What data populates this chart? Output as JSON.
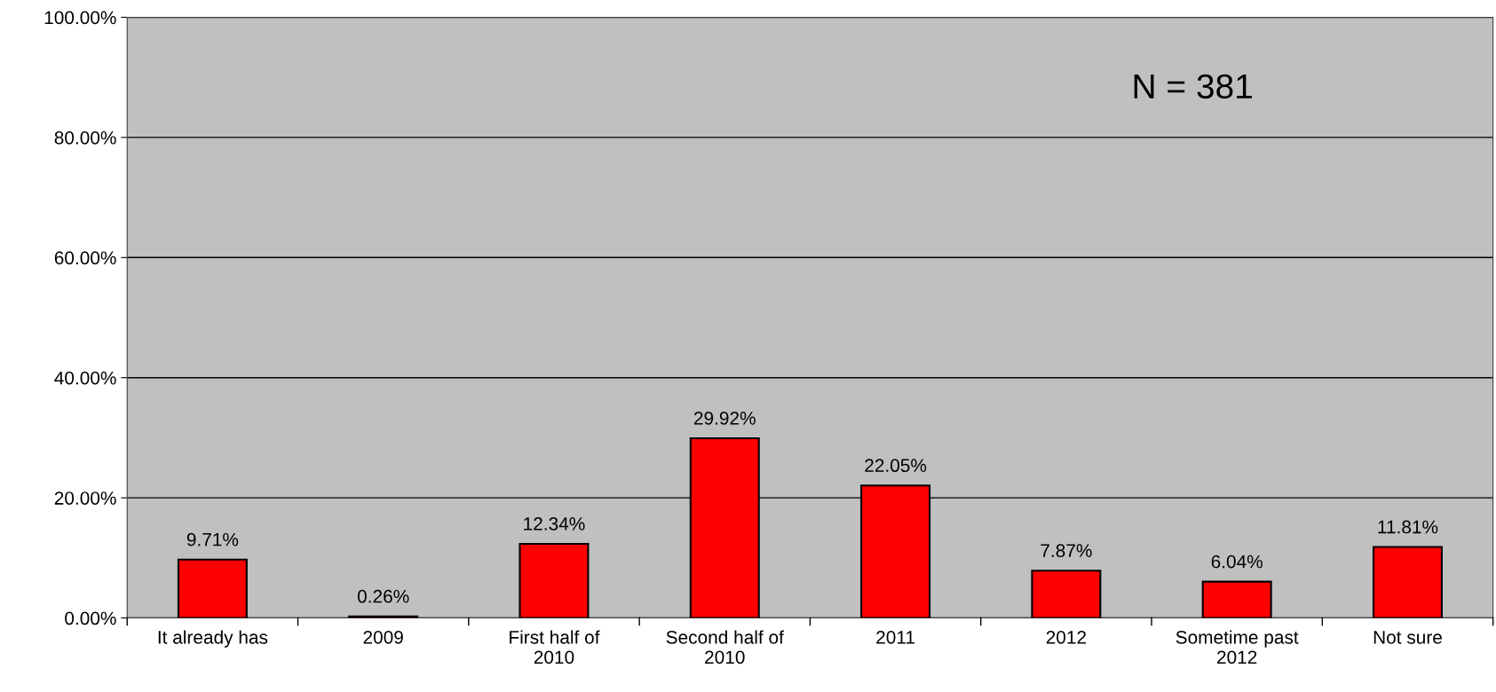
{
  "chart_data": {
    "type": "bar",
    "categories": [
      "It already has",
      "2009",
      "First half of\n2010",
      "Second half of\n2010",
      "2011",
      "2012",
      "Sometime past\n2012",
      "Not sure"
    ],
    "values": [
      9.71,
      0.26,
      12.34,
      29.92,
      22.05,
      7.87,
      6.04,
      11.81
    ],
    "value_labels": [
      "9.71%",
      "0.26%",
      "12.34%",
      "29.92%",
      "22.05%",
      "7.87%",
      "6.04%",
      "11.81%"
    ],
    "color": "#ff0000",
    "ylim": [
      0,
      100
    ],
    "yticks": [
      {
        "value": 0,
        "label": "0.00%"
      },
      {
        "value": 20,
        "label": "20.00%"
      },
      {
        "value": 40,
        "label": "40.00%"
      },
      {
        "value": 60,
        "label": "60.00%"
      },
      {
        "value": 80,
        "label": "80.00%"
      },
      {
        "value": 100,
        "label": "100.00%"
      }
    ],
    "grid": "y",
    "annotations": [
      "N = 381"
    ]
  }
}
